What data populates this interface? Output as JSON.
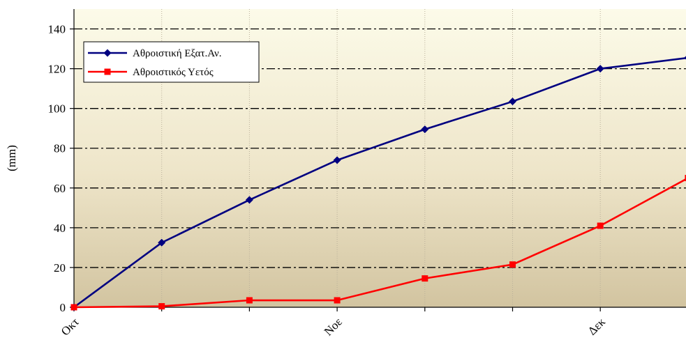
{
  "chart_data": {
    "type": "line",
    "x_labels": [
      "Οκτ",
      "Νοε",
      "Δεκ"
    ],
    "x": [
      0,
      1,
      2,
      3,
      4,
      5,
      6,
      7
    ],
    "ylabel": "(mm)",
    "ylim": [
      0,
      150
    ],
    "yticks": [
      0,
      20,
      40,
      60,
      80,
      100,
      120,
      140
    ],
    "grid": true,
    "legend_position": "top-left",
    "series": [
      {
        "name": "Αθροιστική Εξατ.Αν.",
        "color": "#000080",
        "marker": "diamond",
        "values": [
          0,
          32.5,
          54,
          74,
          89.5,
          103.5,
          120,
          125.5
        ]
      },
      {
        "name": "Αθροιστικός Υετός",
        "color": "#ff0000",
        "marker": "square",
        "values": [
          0,
          0.5,
          3.5,
          3.5,
          14.5,
          21.5,
          41,
          65
        ]
      }
    ]
  }
}
